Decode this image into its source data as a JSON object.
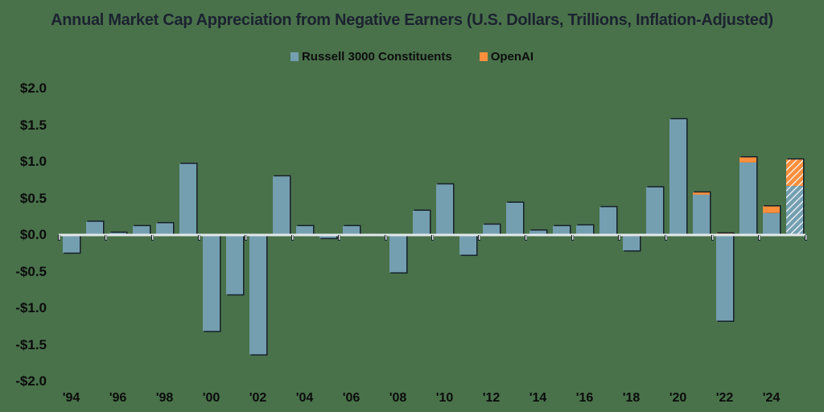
{
  "title": "Annual Market Cap Appreciation from Negative Earners (U.S. Dollars, Trillions, Inflation-Adjusted)",
  "legend": [
    {
      "label": "Russell 3000 Constituents",
      "color": "#749fb1"
    },
    {
      "label": "OpenAI",
      "color": "#fb8f3d"
    }
  ],
  "y_ticks": [
    "$2.0",
    "$1.5",
    "$1.0",
    "$0.5",
    "$0.0",
    "-$0.5",
    "-$1.0",
    "-$1.5",
    "-$2.0"
  ],
  "x_ticks": [
    "'94",
    "'96",
    "'98",
    "'00",
    "'02",
    "'04",
    "'06",
    "'08",
    "'10",
    "'12",
    "'14",
    "'16",
    "'18",
    "'20",
    "'22",
    "'24"
  ],
  "colors": {
    "background": "#49724b",
    "russell": "#749fb1",
    "openai": "#fb8f3d",
    "axis": "#e4e8ea"
  },
  "chart_data": {
    "type": "bar",
    "stacked": true,
    "title": "Annual Market Cap Appreciation from Negative Earners (U.S. Dollars, Trillions, Inflation-Adjusted)",
    "xlabel": "",
    "ylabel": "",
    "ylim": [
      -2.0,
      2.0
    ],
    "grid": false,
    "legend_position": "top",
    "categories": [
      "1994",
      "1995",
      "1996",
      "1997",
      "1998",
      "1999",
      "2000",
      "2001",
      "2002",
      "2003",
      "2004",
      "2005",
      "2006",
      "2007",
      "2008",
      "2009",
      "2010",
      "2011",
      "2012",
      "2013",
      "2014",
      "2015",
      "2016",
      "2017",
      "2018",
      "2019",
      "2020",
      "2021",
      "2022",
      "2023",
      "2024",
      "2025"
    ],
    "series": [
      {
        "name": "Russell 3000 Constituents",
        "values": [
          -0.24,
          0.18,
          0.03,
          0.12,
          0.16,
          0.97,
          -1.31,
          -0.81,
          -1.63,
          0.8,
          0.12,
          -0.04,
          0.12,
          0.0,
          -0.51,
          0.33,
          0.69,
          -0.27,
          0.14,
          0.44,
          0.06,
          0.12,
          0.13,
          0.38,
          -0.21,
          0.65,
          1.58,
          0.55,
          -1.17,
          0.99,
          0.3,
          0.67
        ]
      },
      {
        "name": "OpenAI",
        "values": [
          0,
          0,
          0,
          0,
          0,
          0,
          0,
          0,
          0,
          0,
          0,
          0,
          0,
          0,
          0,
          0,
          0,
          0,
          0,
          0,
          0,
          0,
          0,
          0,
          0,
          0,
          0,
          0.03,
          0.02,
          0.07,
          0.09,
          0.36
        ]
      }
    ],
    "annotations": [
      "2025 bar shown hatched (estimate)"
    ]
  }
}
